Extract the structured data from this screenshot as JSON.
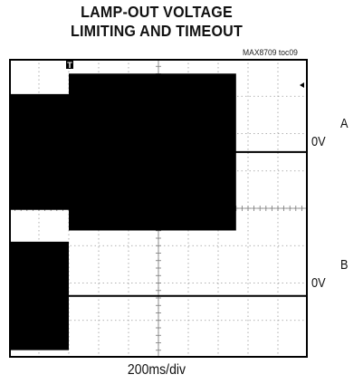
{
  "title_line1": "LAMP-OUT VOLTAGE",
  "title_line2": "LIMITING AND TIMEOUT",
  "figure_id": "MAX8709 toc09",
  "trigger_marker": "T",
  "channels": [
    {
      "name": "A",
      "zero_label": "0V"
    },
    {
      "name": "B",
      "zero_label": "0V"
    }
  ],
  "timebase_label": "200ms/div",
  "chart_data": {
    "type": "line",
    "title": "LAMP-OUT VOLTAGE LIMITING AND TIMEOUT",
    "xlabel": "200ms/div",
    "grid": true,
    "divisions": {
      "x": 10,
      "y": 8
    },
    "x_unit": "div",
    "xlim": [
      0,
      10
    ],
    "series": [
      {
        "name": "A",
        "description_points": [
          {
            "x": 0,
            "ymax": 1.55,
            "ymin": -1.55
          },
          {
            "x": 2.0,
            "ymax": 1.55,
            "ymin": -1.55
          },
          {
            "x": 2.0,
            "ymax": 2.1,
            "ymin": -2.1
          },
          {
            "x": 7.6,
            "ymax": 2.1,
            "ymin": -2.1
          },
          {
            "x": 7.6,
            "ymax": 0.0,
            "ymin": 0.0
          },
          {
            "x": 10,
            "ymax": 0.0,
            "ymin": 0.0
          }
        ]
      },
      {
        "name": "B",
        "description_points": [
          {
            "x": 0,
            "ymax": 1.45,
            "ymin": -1.45
          },
          {
            "x": 2.0,
            "ymax": 1.45,
            "ymin": -1.45
          },
          {
            "x": 2.0,
            "ymax": 0.0,
            "ymin": 0.0
          },
          {
            "x": 10,
            "ymax": 0.0,
            "ymin": 0.0
          }
        ]
      }
    ]
  }
}
